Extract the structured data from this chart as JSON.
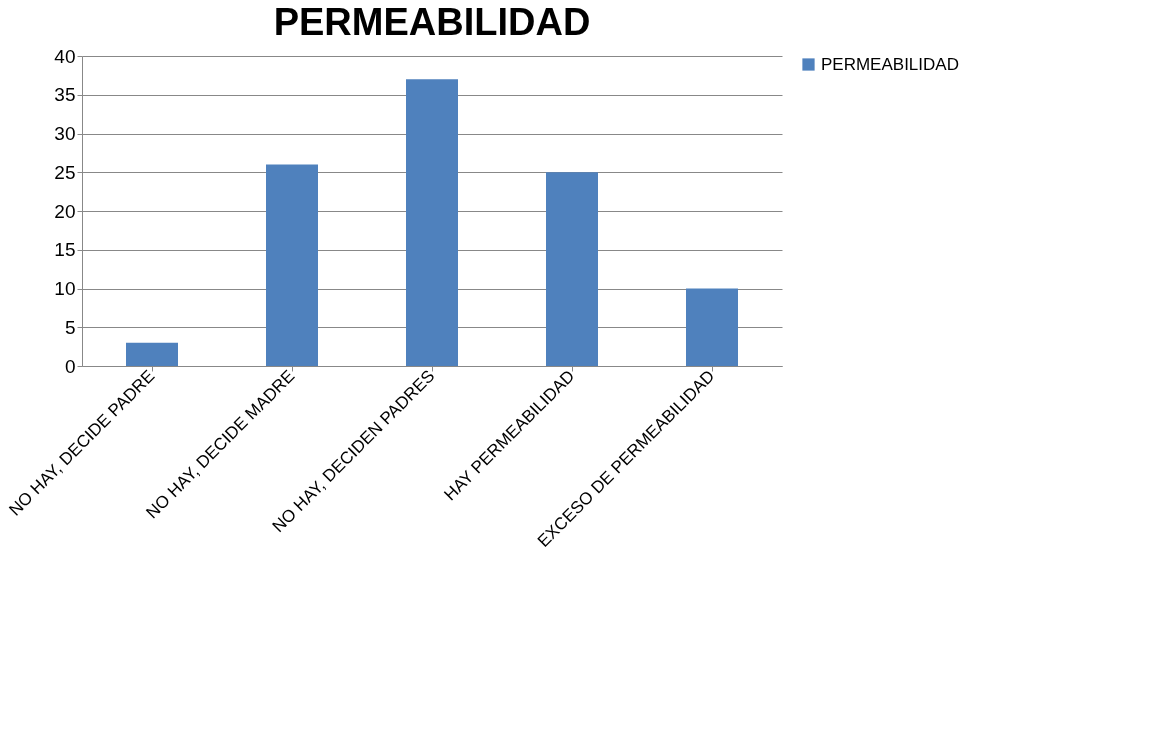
{
  "chart_data": {
    "type": "bar",
    "title": "PERMEABILIDAD",
    "categories": [
      "NO HAY, DECIDE PADRE",
      "NO HAY, DECIDE MADRE",
      "NO HAY, DECIDEN PADRES",
      "HAY PERMEABILIDAD",
      "EXCESO DE PERMEABILIDAD"
    ],
    "series": [
      {
        "name": "PERMEABILIDAD",
        "color": "#4f81bd",
        "values": [
          3,
          26,
          37,
          25,
          10
        ]
      }
    ],
    "ylim": [
      0,
      40
    ],
    "yticks": [
      0,
      5,
      10,
      15,
      20,
      25,
      30,
      35,
      40
    ],
    "grid": "y",
    "legend": "right"
  }
}
